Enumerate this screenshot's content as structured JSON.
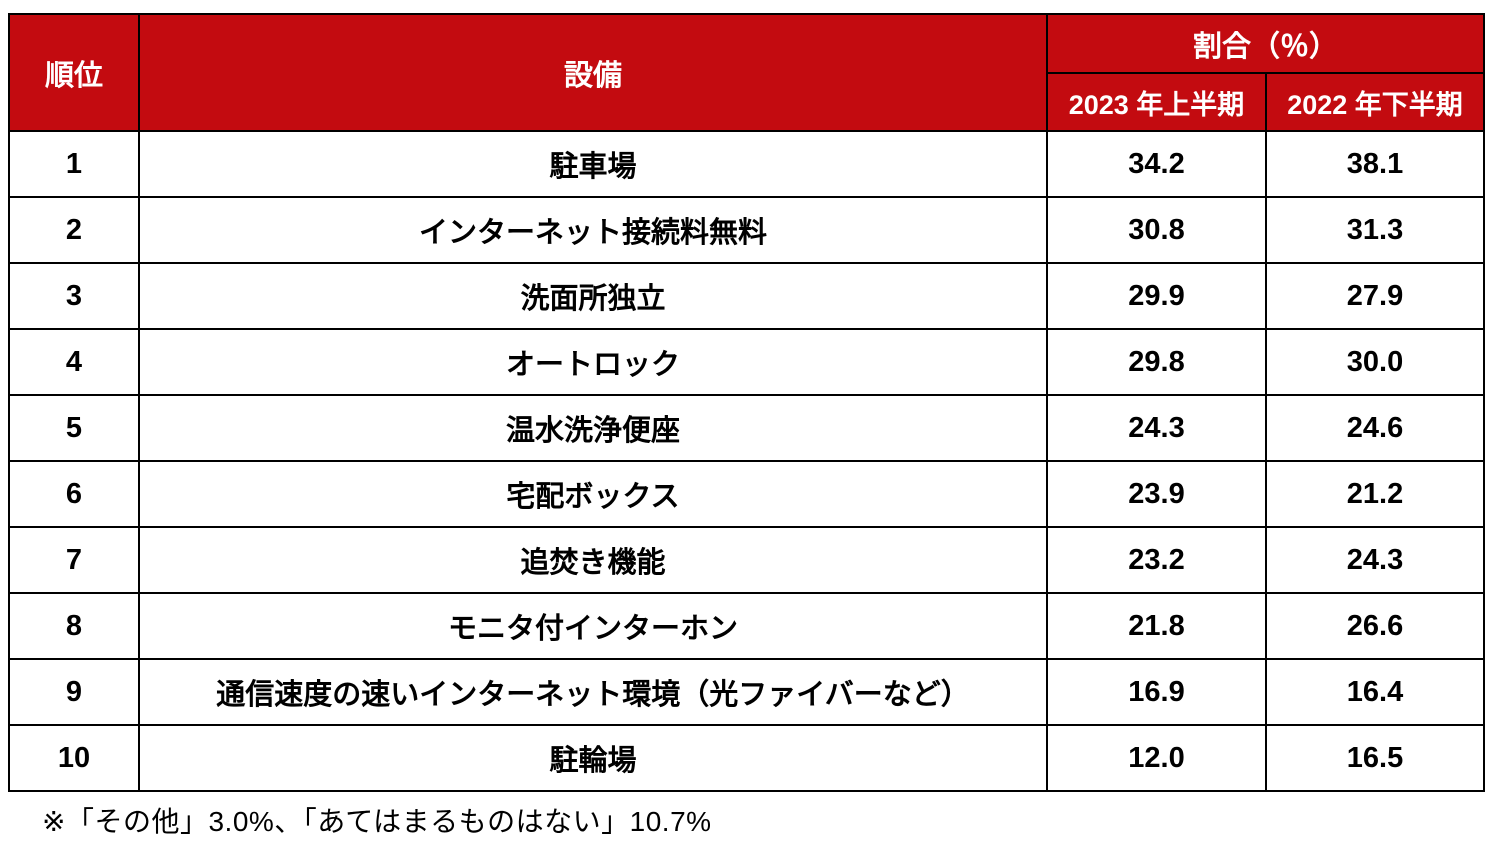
{
  "colors": {
    "header_bg": "#C30B10",
    "header_text": "#FFFFFF",
    "grid_border": "#000000",
    "body_text": "#000000",
    "page_bg": "#FFFFFF"
  },
  "table": {
    "headers": {
      "rank": "順位",
      "facility": "設備",
      "ratio_group": "割合（％）",
      "period_2023": "2023 年上半期",
      "period_2022": "2022 年下半期"
    },
    "rows": [
      {
        "rank": "1",
        "facility": "駐車場",
        "v2023": "34.2",
        "v2022": "38.1"
      },
      {
        "rank": "2",
        "facility": "インターネット接続料無料",
        "v2023": "30.8",
        "v2022": "31.3"
      },
      {
        "rank": "3",
        "facility": "洗面所独立",
        "v2023": "29.9",
        "v2022": "27.9"
      },
      {
        "rank": "4",
        "facility": "オートロック",
        "v2023": "29.8",
        "v2022": "30.0"
      },
      {
        "rank": "5",
        "facility": "温水洗浄便座",
        "v2023": "24.3",
        "v2022": "24.6"
      },
      {
        "rank": "6",
        "facility": "宅配ボックス",
        "v2023": "23.9",
        "v2022": "21.2"
      },
      {
        "rank": "7",
        "facility": "追焚き機能",
        "v2023": "23.2",
        "v2022": "24.3"
      },
      {
        "rank": "8",
        "facility": "モニタ付インターホン",
        "v2023": "21.8",
        "v2022": "26.6"
      },
      {
        "rank": "9",
        "facility": "通信速度の速いインターネット環境（光ファイバーなど）",
        "v2023": "16.9",
        "v2022": "16.4"
      },
      {
        "rank": "10",
        "facility": "駐輪場",
        "v2023": "12.0",
        "v2022": "16.5"
      }
    ]
  },
  "footnote": "※「その他」3.0%、「あてはまるものはない」10.7%",
  "chart_data": {
    "type": "table",
    "title": "",
    "column_group": "割合（％）",
    "columns": [
      "順位",
      "設備",
      "2023 年上半期",
      "2022 年下半期"
    ],
    "categories": [
      "駐車場",
      "インターネット接続料無料",
      "洗面所独立",
      "オートロック",
      "温水洗浄便座",
      "宅配ボックス",
      "追焚き機能",
      "モニタ付インターホン",
      "通信速度の速いインターネット環境（光ファイバーなど）",
      "駐輪場"
    ],
    "series": [
      {
        "name": "2023 年上半期",
        "values": [
          34.2,
          30.8,
          29.9,
          29.8,
          24.3,
          23.9,
          23.2,
          21.8,
          16.9,
          12.0
        ]
      },
      {
        "name": "2022 年下半期",
        "values": [
          38.1,
          31.3,
          27.9,
          30.0,
          24.6,
          21.2,
          24.3,
          26.6,
          16.4,
          16.5
        ]
      }
    ],
    "footnote": "※「その他」3.0%、「あてはまるものはない」10.7%"
  }
}
